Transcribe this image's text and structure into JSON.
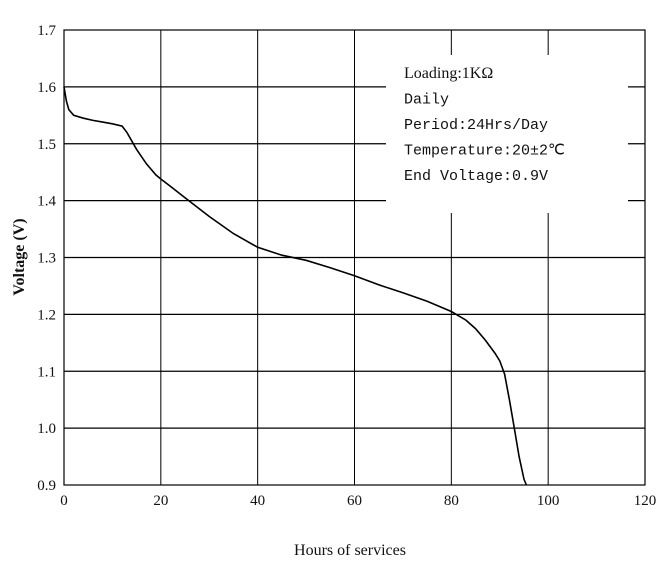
{
  "chart_data": {
    "type": "line",
    "title": "",
    "xlabel": "Hours of services",
    "ylabel": "Voltage (V)",
    "xlim": [
      0,
      120
    ],
    "ylim": [
      0.9,
      1.7
    ],
    "x_ticks": [
      "0",
      "20",
      "40",
      "60",
      "80",
      "100",
      "120"
    ],
    "y_ticks": [
      "0.9",
      "1.0",
      "1.1",
      "1.2",
      "1.3",
      "1.4",
      "1.5",
      "1.6",
      "1.7"
    ],
    "grid": true,
    "annotation_lines": [
      "Loading:1KΩ",
      "Daily",
      "Period:24Hrs/Day",
      "Temperature:20±2℃",
      "End Voltage:0.9V"
    ],
    "series": [
      {
        "x": [
          0,
          0.5,
          1,
          2,
          4,
          6,
          8,
          10,
          12,
          13,
          15,
          17,
          19,
          20,
          22,
          25,
          30,
          35,
          40,
          45,
          50,
          55,
          60,
          65,
          70,
          75,
          80,
          83,
          85,
          87,
          89,
          90,
          91,
          92,
          93,
          94,
          95,
          95.5
        ],
        "y": [
          1.6,
          1.575,
          1.56,
          1.55,
          1.545,
          1.541,
          1.538,
          1.535,
          1.531,
          1.52,
          1.49,
          1.465,
          1.445,
          1.438,
          1.425,
          1.405,
          1.372,
          1.342,
          1.318,
          1.304,
          1.295,
          1.282,
          1.268,
          1.252,
          1.238,
          1.223,
          1.205,
          1.19,
          1.175,
          1.155,
          1.132,
          1.118,
          1.095,
          1.05,
          1.0,
          0.95,
          0.91,
          0.9
        ]
      }
    ]
  }
}
